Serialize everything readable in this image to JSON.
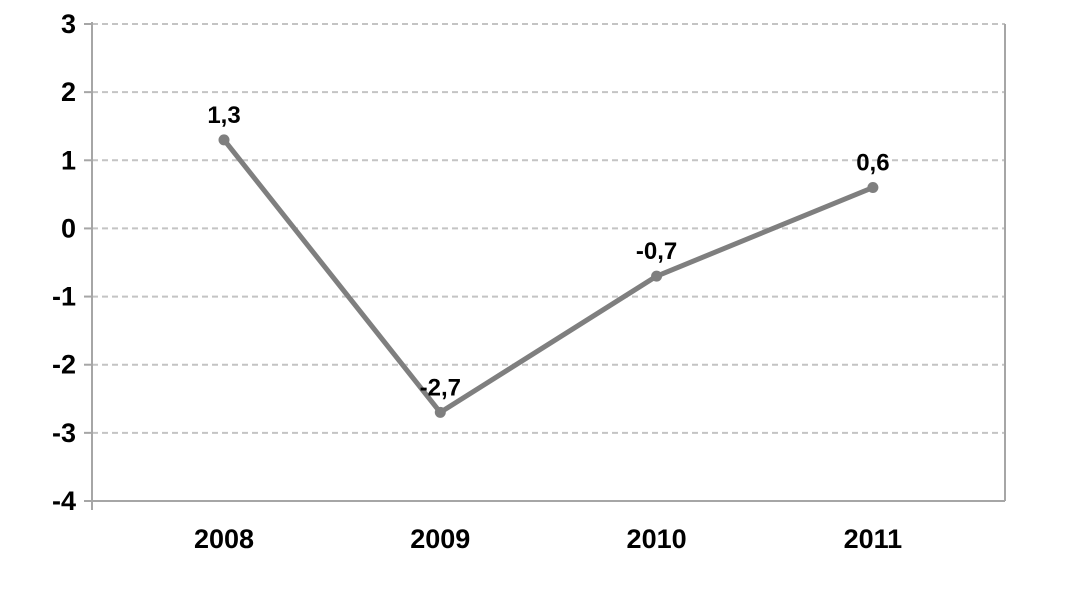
{
  "chart_data": {
    "type": "line",
    "title": "",
    "xlabel": "",
    "ylabel": "",
    "categories": [
      "2008",
      "2009",
      "2010",
      "2011"
    ],
    "series": [
      {
        "name": "series-1",
        "values": [
          1.3,
          -2.7,
          -0.7,
          0.6
        ],
        "point_labels": [
          "1,3",
          "-2,7",
          "-0,7",
          "0,6"
        ],
        "color": "#7f7f7f"
      }
    ],
    "ylim": [
      -4,
      3
    ],
    "yticks": [
      3,
      2,
      1,
      0,
      -1,
      -2,
      -3,
      -4
    ],
    "ytick_labels": [
      "3",
      "2",
      "1",
      "0",
      "-1",
      "-2",
      "-3",
      "-4"
    ],
    "decimal_separator": ",",
    "grid": "horizontal-dashed",
    "legend_position": "none",
    "colors": {
      "line": "#7f7f7f",
      "marker": "#7f7f7f",
      "gridline": "#c4c4c4",
      "axis": "#a6a6a6",
      "text": "#000000",
      "background": "#ffffff"
    }
  }
}
